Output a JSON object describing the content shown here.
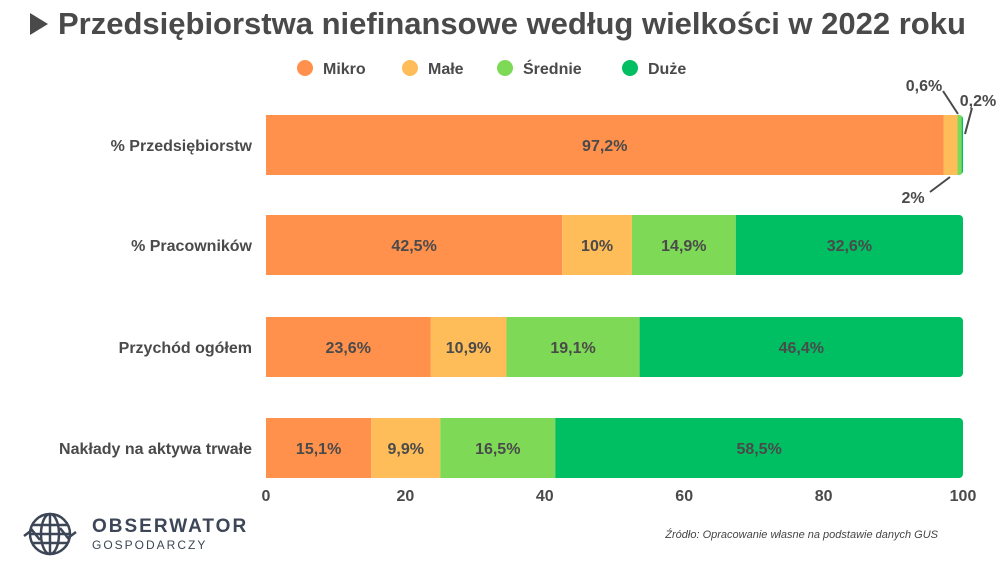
{
  "chart_data": {
    "type": "bar",
    "orientation": "horizontal-stacked",
    "title": "Przedsiębiorstwa niefinansowe według wielkości w 2022 roku",
    "categories": [
      "% Przedsiębiorstw",
      "% Pracowników",
      "Przychód ogółem",
      "Nakłady na aktywa trwałe"
    ],
    "series": [
      {
        "name": "Mikro",
        "color": "#FF914D",
        "values": [
          97.2,
          42.5,
          23.6,
          15.1
        ],
        "labels": [
          "97,2%",
          "42,5%",
          "23,6%",
          "15,1%"
        ]
      },
      {
        "name": "Małe",
        "color": "#FFBD59",
        "values": [
          2,
          10,
          10.9,
          9.9
        ],
        "labels": [
          "2%",
          "10%",
          "10,9%",
          "9,9%"
        ]
      },
      {
        "name": "Średnie",
        "color": "#7ED957",
        "values": [
          0.6,
          14.9,
          19.1,
          16.5
        ],
        "labels": [
          "0,6%",
          "14,9%",
          "19,1%",
          "16,5%"
        ]
      },
      {
        "name": "Duże",
        "color": "#00BF63",
        "values": [
          0.2,
          32.6,
          46.4,
          58.5
        ],
        "labels": [
          "0,2%",
          "32,6%",
          "46,4%",
          "58,5%"
        ]
      }
    ],
    "xlim": [
      0,
      100
    ],
    "xticks": [
      "0",
      "20",
      "40",
      "60",
      "80",
      "100"
    ],
    "legend": "top",
    "grid": false
  },
  "source": "Źródło: Opracowanie własne na podstawie danych GUS",
  "logo": {
    "name": "OBSERWATOR",
    "sub": "GOSPODARCZY"
  }
}
